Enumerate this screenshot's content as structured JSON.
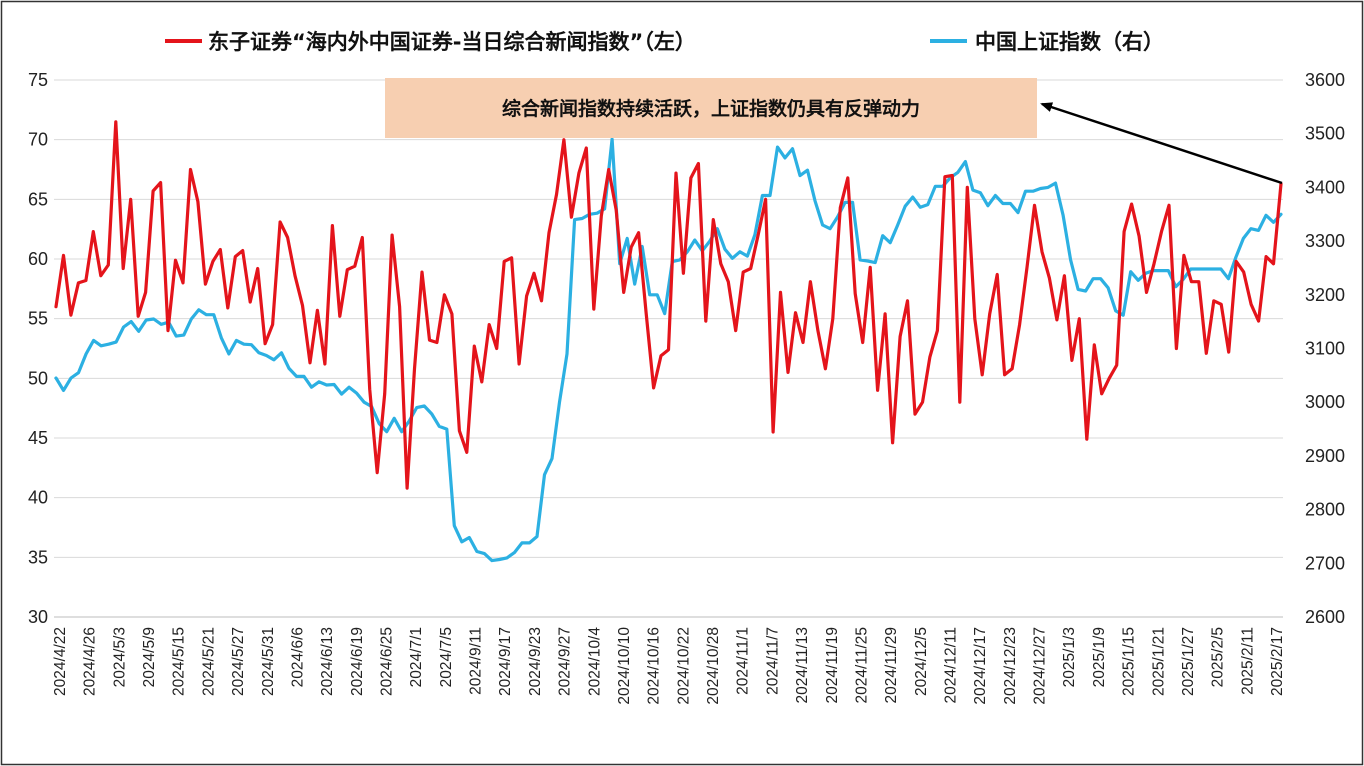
{
  "chart_data": {
    "type": "line",
    "legend": {
      "placement": "top-center",
      "entries": [
        {
          "label": "东子证券“海内外中国证券-当日综合新闻指数”（左）",
          "color": "#e4141b"
        },
        {
          "label": "中国上证指数（右）",
          "color": "#2cb0e2"
        }
      ]
    },
    "annotation": {
      "text": "综合新闻指数持续活跃，上证指数仍具有反弹动力",
      "background": "#f7cfb1"
    },
    "y_left": {
      "min": 30,
      "max": 75,
      "ticks": [
        "30",
        "35",
        "40",
        "45",
        "50",
        "55",
        "60",
        "65",
        "70",
        "75"
      ]
    },
    "y_right": {
      "min": 2600,
      "max": 3600,
      "ticks": [
        "2600",
        "2700",
        "2800",
        "2900",
        "3000",
        "3100",
        "3200",
        "3300",
        "3400",
        "3500",
        "3600"
      ]
    },
    "x_tick_labels": [
      "2024/4/22",
      "2024/4/26",
      "2024/5/3",
      "2024/5/9",
      "2024/5/15",
      "2024/5/21",
      "2024/5/27",
      "2024/5/31",
      "2024/6/6",
      "2024/6/13",
      "2024/6/19",
      "2024/6/25",
      "2024/7/1",
      "2024/7/5",
      "2024/9/11",
      "2024/9/17",
      "2024/9/23",
      "2024/9/27",
      "2024/10/4",
      "2024/10/10",
      "2024/10/16",
      "2024/10/22",
      "2024/10/28",
      "2024/11/1",
      "2024/11/7",
      "2024/11/13",
      "2024/11/19",
      "2024/11/25",
      "2024/11/29",
      "2024/12/5",
      "2024/12/11",
      "2024/12/17",
      "2024/12/23",
      "2024/12/27",
      "2025/1/3",
      "2025/1/9",
      "2025/1/15",
      "2025/1/21",
      "2025/1/27",
      "2025/2/5",
      "2025/2/11",
      "2025/2/17"
    ],
    "series": [
      {
        "name": "东子证券“海内外中国证券-当日综合新闻指数”（左）",
        "axis": "left",
        "color": "#e4141b",
        "values": [
          56.0,
          60.3,
          55.3,
          58.0,
          58.2,
          62.3,
          58.6,
          59.5,
          71.5,
          59.2,
          65.0,
          55.2,
          57.2,
          65.7,
          66.4,
          54.0,
          59.9,
          58.0,
          67.5,
          64.8,
          57.9,
          59.8,
          60.8,
          55.9,
          60.2,
          60.7,
          56.4,
          59.2,
          52.9,
          54.5,
          63.1,
          61.8,
          58.6,
          56.1,
          51.3,
          55.7,
          51.2,
          62.8,
          55.2,
          59.1,
          59.4,
          61.8,
          49.1,
          42.1,
          48.7,
          62.0,
          56.0,
          40.8,
          50.8,
          58.9,
          53.2,
          53.0,
          57.0,
          55.4,
          45.6,
          43.8,
          52.7,
          49.7,
          54.5,
          52.5,
          59.8,
          60.1,
          51.2,
          56.9,
          58.8,
          56.5,
          62.2,
          65.4,
          70.0,
          63.5,
          67.2,
          69.3,
          55.8,
          63.6,
          67.5,
          64.1,
          57.2,
          61.0,
          62.2,
          55.5,
          49.2,
          51.9,
          52.4,
          67.2,
          58.8,
          66.8,
          68.0,
          54.8,
          63.3,
          59.6,
          58.1,
          54.0,
          58.9,
          59.2,
          62.0,
          65.0,
          45.5,
          57.2,
          50.5,
          55.5,
          53.0,
          58.1,
          54.0,
          50.8,
          55.0,
          64.3,
          66.8,
          57.1,
          53.0,
          59.3,
          49.0,
          55.4,
          44.6,
          53.5,
          56.5,
          47.0,
          48.0,
          51.8,
          54.0,
          66.9,
          67.0,
          48.0,
          66.0,
          55.0,
          50.3,
          55.4,
          58.7,
          50.3,
          50.8,
          54.5,
          59.3,
          64.5,
          60.6,
          58.4,
          54.9,
          58.6,
          51.5,
          55.0,
          44.9,
          52.8,
          48.7,
          50.0,
          51.1,
          62.3,
          64.6,
          61.9,
          57.2,
          59.6,
          62.3,
          64.5,
          52.5,
          60.3,
          58.1,
          58.1,
          52.1,
          56.5,
          56.2,
          52.2,
          59.8,
          58.9,
          56.2,
          54.8,
          60.2,
          59.6,
          66.3
        ]
      },
      {
        "name": "中国上证指数（右）",
        "axis": "right",
        "color": "#2cb0e2",
        "values": [
          3045,
          3022,
          3045,
          3055,
          3090,
          3115,
          3105,
          3108,
          3112,
          3140,
          3150,
          3132,
          3153,
          3155,
          3145,
          3149,
          3123,
          3125,
          3155,
          3172,
          3163,
          3163,
          3120,
          3090,
          3115,
          3108,
          3107,
          3092,
          3087,
          3079,
          3092,
          3063,
          3048,
          3048,
          3028,
          3038,
          3032,
          3033,
          3015,
          3028,
          3017,
          3000,
          2992,
          2960,
          2945,
          2970,
          2945,
          2965,
          2990,
          2993,
          2978,
          2955,
          2950,
          2770,
          2740,
          2748,
          2722,
          2718,
          2705,
          2707,
          2710,
          2720,
          2738,
          2738,
          2750,
          2865,
          2895,
          3000,
          3090,
          3340,
          3342,
          3350,
          3352,
          3360,
          3490,
          3258,
          3305,
          3220,
          3290,
          3200,
          3200,
          3165,
          3262,
          3265,
          3280,
          3302,
          3282,
          3300,
          3323,
          3285,
          3268,
          3280,
          3272,
          3312,
          3385,
          3385,
          3475,
          3455,
          3472,
          3422,
          3432,
          3375,
          3330,
          3323,
          3345,
          3372,
          3372,
          3265,
          3263,
          3260,
          3310,
          3297,
          3330,
          3365,
          3382,
          3363,
          3368,
          3402,
          3402,
          3418,
          3428,
          3448,
          3395,
          3390,
          3366,
          3385,
          3370,
          3370,
          3353,
          3393,
          3393,
          3398,
          3400,
          3408,
          3348,
          3265,
          3210,
          3207,
          3230,
          3230,
          3213,
          3170,
          3162,
          3243,
          3227,
          3240,
          3245,
          3245,
          3245,
          3215,
          3229,
          3248,
          3248,
          3248,
          3248,
          3248,
          3230,
          3270,
          3305,
          3323,
          3320,
          3348,
          3335,
          3350
        ]
      }
    ]
  }
}
